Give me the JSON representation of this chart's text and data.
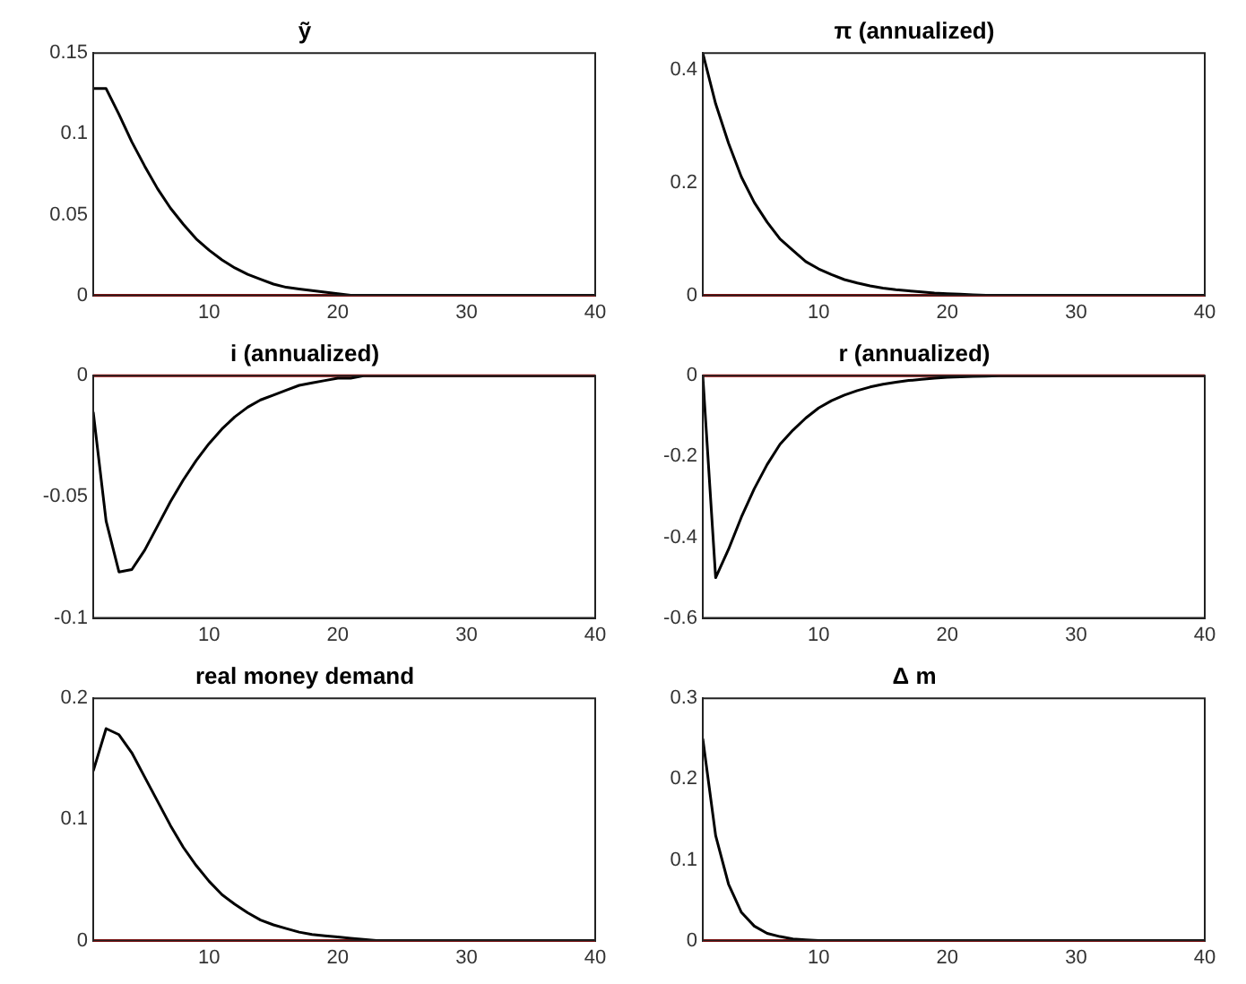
{
  "chart_data": [
    {
      "type": "line",
      "title": "ỹ",
      "x": [
        1,
        2,
        3,
        4,
        5,
        6,
        7,
        8,
        9,
        10,
        11,
        12,
        13,
        14,
        15,
        16,
        17,
        18,
        19,
        20,
        21,
        22,
        23,
        24,
        25,
        26,
        27,
        28,
        29,
        30,
        31,
        32,
        33,
        34,
        35,
        36,
        37,
        38,
        39,
        40
      ],
      "series": [
        {
          "color": "#000000",
          "values": [
            0.128,
            0.128,
            0.112,
            0.095,
            0.08,
            0.066,
            0.054,
            0.044,
            0.035,
            0.028,
            0.022,
            0.017,
            0.013,
            0.01,
            0.007,
            0.005,
            0.004,
            0.003,
            0.002,
            0.001,
            0,
            0,
            0,
            0,
            0,
            0,
            0,
            0,
            0,
            0,
            0,
            0,
            0,
            0,
            0,
            0,
            0,
            0,
            0,
            0
          ]
        }
      ],
      "xlim": [
        1,
        40
      ],
      "xticks": [
        10,
        20,
        30,
        40
      ],
      "ylim": [
        0,
        0.15
      ],
      "yticks": [
        0,
        0.05,
        0.1,
        0.15
      ],
      "grid": false,
      "legend": false,
      "marker": "none",
      "line_style": "solid",
      "ref_lines": [
        {
          "axis": "y",
          "value": 0,
          "color": "#cc0000"
        }
      ]
    },
    {
      "type": "line",
      "title": "π (annualized)",
      "x": [
        1,
        2,
        3,
        4,
        5,
        6,
        7,
        8,
        9,
        10,
        11,
        12,
        13,
        14,
        15,
        16,
        17,
        18,
        19,
        20,
        21,
        22,
        23,
        24,
        25,
        26,
        27,
        28,
        29,
        30,
        31,
        32,
        33,
        34,
        35,
        36,
        37,
        38,
        39,
        40
      ],
      "series": [
        {
          "color": "#000000",
          "values": [
            0.43,
            0.34,
            0.27,
            0.21,
            0.165,
            0.13,
            0.1,
            0.08,
            0.06,
            0.047,
            0.037,
            0.028,
            0.022,
            0.017,
            0.013,
            0.01,
            0.008,
            0.006,
            0.004,
            0.003,
            0.002,
            0.001,
            0,
            0,
            0,
            0,
            0,
            0,
            0,
            0,
            0,
            0,
            0,
            0,
            0,
            0,
            0,
            0,
            0,
            0
          ]
        }
      ],
      "xlim": [
        1,
        40
      ],
      "xticks": [
        10,
        20,
        30,
        40
      ],
      "ylim": [
        0,
        0.43
      ],
      "yticks": [
        0,
        0.2,
        0.4
      ],
      "grid": false,
      "legend": false,
      "marker": "none",
      "line_style": "solid",
      "ref_lines": [
        {
          "axis": "y",
          "value": 0,
          "color": "#cc0000"
        }
      ]
    },
    {
      "type": "line",
      "title": "i (annualized)",
      "x": [
        1,
        2,
        3,
        4,
        5,
        6,
        7,
        8,
        9,
        10,
        11,
        12,
        13,
        14,
        15,
        16,
        17,
        18,
        19,
        20,
        21,
        22,
        23,
        24,
        25,
        26,
        27,
        28,
        29,
        30,
        31,
        32,
        33,
        34,
        35,
        36,
        37,
        38,
        39,
        40
      ],
      "series": [
        {
          "color": "#000000",
          "values": [
            -0.015,
            -0.06,
            -0.081,
            -0.08,
            -0.072,
            -0.062,
            -0.052,
            -0.043,
            -0.035,
            -0.028,
            -0.022,
            -0.017,
            -0.013,
            -0.01,
            -0.008,
            -0.006,
            -0.004,
            -0.003,
            -0.002,
            -0.001,
            -0.001,
            0,
            0,
            0,
            0,
            0,
            0,
            0,
            0,
            0,
            0,
            0,
            0,
            0,
            0,
            0,
            0,
            0,
            0,
            0
          ]
        }
      ],
      "xlim": [
        1,
        40
      ],
      "xticks": [
        10,
        20,
        30,
        40
      ],
      "ylim": [
        -0.1,
        0
      ],
      "yticks": [
        -0.1,
        -0.05,
        0
      ],
      "grid": false,
      "legend": false,
      "marker": "none",
      "line_style": "solid",
      "ref_lines": [
        {
          "axis": "y",
          "value": 0,
          "color": "#cc0000"
        }
      ]
    },
    {
      "type": "line",
      "title": "r (annualized)",
      "x": [
        1,
        2,
        3,
        4,
        5,
        6,
        7,
        8,
        9,
        10,
        11,
        12,
        13,
        14,
        15,
        16,
        17,
        18,
        19,
        20,
        21,
        22,
        23,
        24,
        25,
        26,
        27,
        28,
        29,
        30,
        31,
        32,
        33,
        34,
        35,
        36,
        37,
        38,
        39,
        40
      ],
      "series": [
        {
          "color": "#000000",
          "values": [
            0,
            -0.5,
            -0.43,
            -0.35,
            -0.28,
            -0.22,
            -0.17,
            -0.135,
            -0.105,
            -0.08,
            -0.062,
            -0.048,
            -0.037,
            -0.028,
            -0.021,
            -0.016,
            -0.012,
            -0.009,
            -0.006,
            -0.004,
            -0.003,
            -0.002,
            -0.001,
            0,
            0,
            0,
            0,
            0,
            0,
            0,
            0,
            0,
            0,
            0,
            0,
            0,
            0,
            0,
            0,
            0
          ]
        }
      ],
      "xlim": [
        1,
        40
      ],
      "xticks": [
        10,
        20,
        30,
        40
      ],
      "ylim": [
        -0.6,
        0
      ],
      "yticks": [
        -0.6,
        -0.4,
        -0.2,
        0
      ],
      "grid": false,
      "legend": false,
      "marker": "none",
      "line_style": "solid",
      "ref_lines": [
        {
          "axis": "y",
          "value": 0,
          "color": "#cc0000"
        }
      ]
    },
    {
      "type": "line",
      "title": "real money demand",
      "x": [
        1,
        2,
        3,
        4,
        5,
        6,
        7,
        8,
        9,
        10,
        11,
        12,
        13,
        14,
        15,
        16,
        17,
        18,
        19,
        20,
        21,
        22,
        23,
        24,
        25,
        26,
        27,
        28,
        29,
        30,
        31,
        32,
        33,
        34,
        35,
        36,
        37,
        38,
        39,
        40
      ],
      "series": [
        {
          "color": "#000000",
          "values": [
            0.14,
            0.175,
            0.17,
            0.155,
            0.135,
            0.115,
            0.095,
            0.077,
            0.062,
            0.049,
            0.038,
            0.03,
            0.023,
            0.017,
            0.013,
            0.01,
            0.007,
            0.005,
            0.004,
            0.003,
            0.002,
            0.001,
            0,
            0,
            0,
            0,
            0,
            0,
            0,
            0,
            0,
            0,
            0,
            0,
            0,
            0,
            0,
            0,
            0,
            0
          ]
        }
      ],
      "xlim": [
        1,
        40
      ],
      "xticks": [
        10,
        20,
        30,
        40
      ],
      "ylim": [
        0,
        0.2
      ],
      "yticks": [
        0,
        0.1,
        0.2
      ],
      "grid": false,
      "legend": false,
      "marker": "none",
      "line_style": "solid",
      "ref_lines": [
        {
          "axis": "y",
          "value": 0,
          "color": "#cc0000"
        }
      ]
    },
    {
      "type": "line",
      "title": "Δ m",
      "x": [
        1,
        2,
        3,
        4,
        5,
        6,
        7,
        8,
        9,
        10,
        11,
        12,
        13,
        14,
        15,
        16,
        17,
        18,
        19,
        20,
        21,
        22,
        23,
        24,
        25,
        26,
        27,
        28,
        29,
        30,
        31,
        32,
        33,
        34,
        35,
        36,
        37,
        38,
        39,
        40
      ],
      "series": [
        {
          "color": "#000000",
          "values": [
            0.25,
            0.13,
            0.07,
            0.035,
            0.018,
            0.009,
            0.005,
            0.002,
            0.001,
            0,
            0,
            0,
            0,
            0,
            0,
            0,
            0,
            0,
            0,
            0,
            0,
            0,
            0,
            0,
            0,
            0,
            0,
            0,
            0,
            0,
            0,
            0,
            0,
            0,
            0,
            0,
            0,
            0,
            0,
            0
          ]
        }
      ],
      "xlim": [
        1,
        40
      ],
      "xticks": [
        10,
        20,
        30,
        40
      ],
      "ylim": [
        0,
        0.3
      ],
      "yticks": [
        0,
        0.1,
        0.2,
        0.3
      ],
      "grid": false,
      "legend": false,
      "marker": "none",
      "line_style": "solid",
      "ref_lines": [
        {
          "axis": "y",
          "value": 0,
          "color": "#cc0000"
        }
      ]
    }
  ]
}
